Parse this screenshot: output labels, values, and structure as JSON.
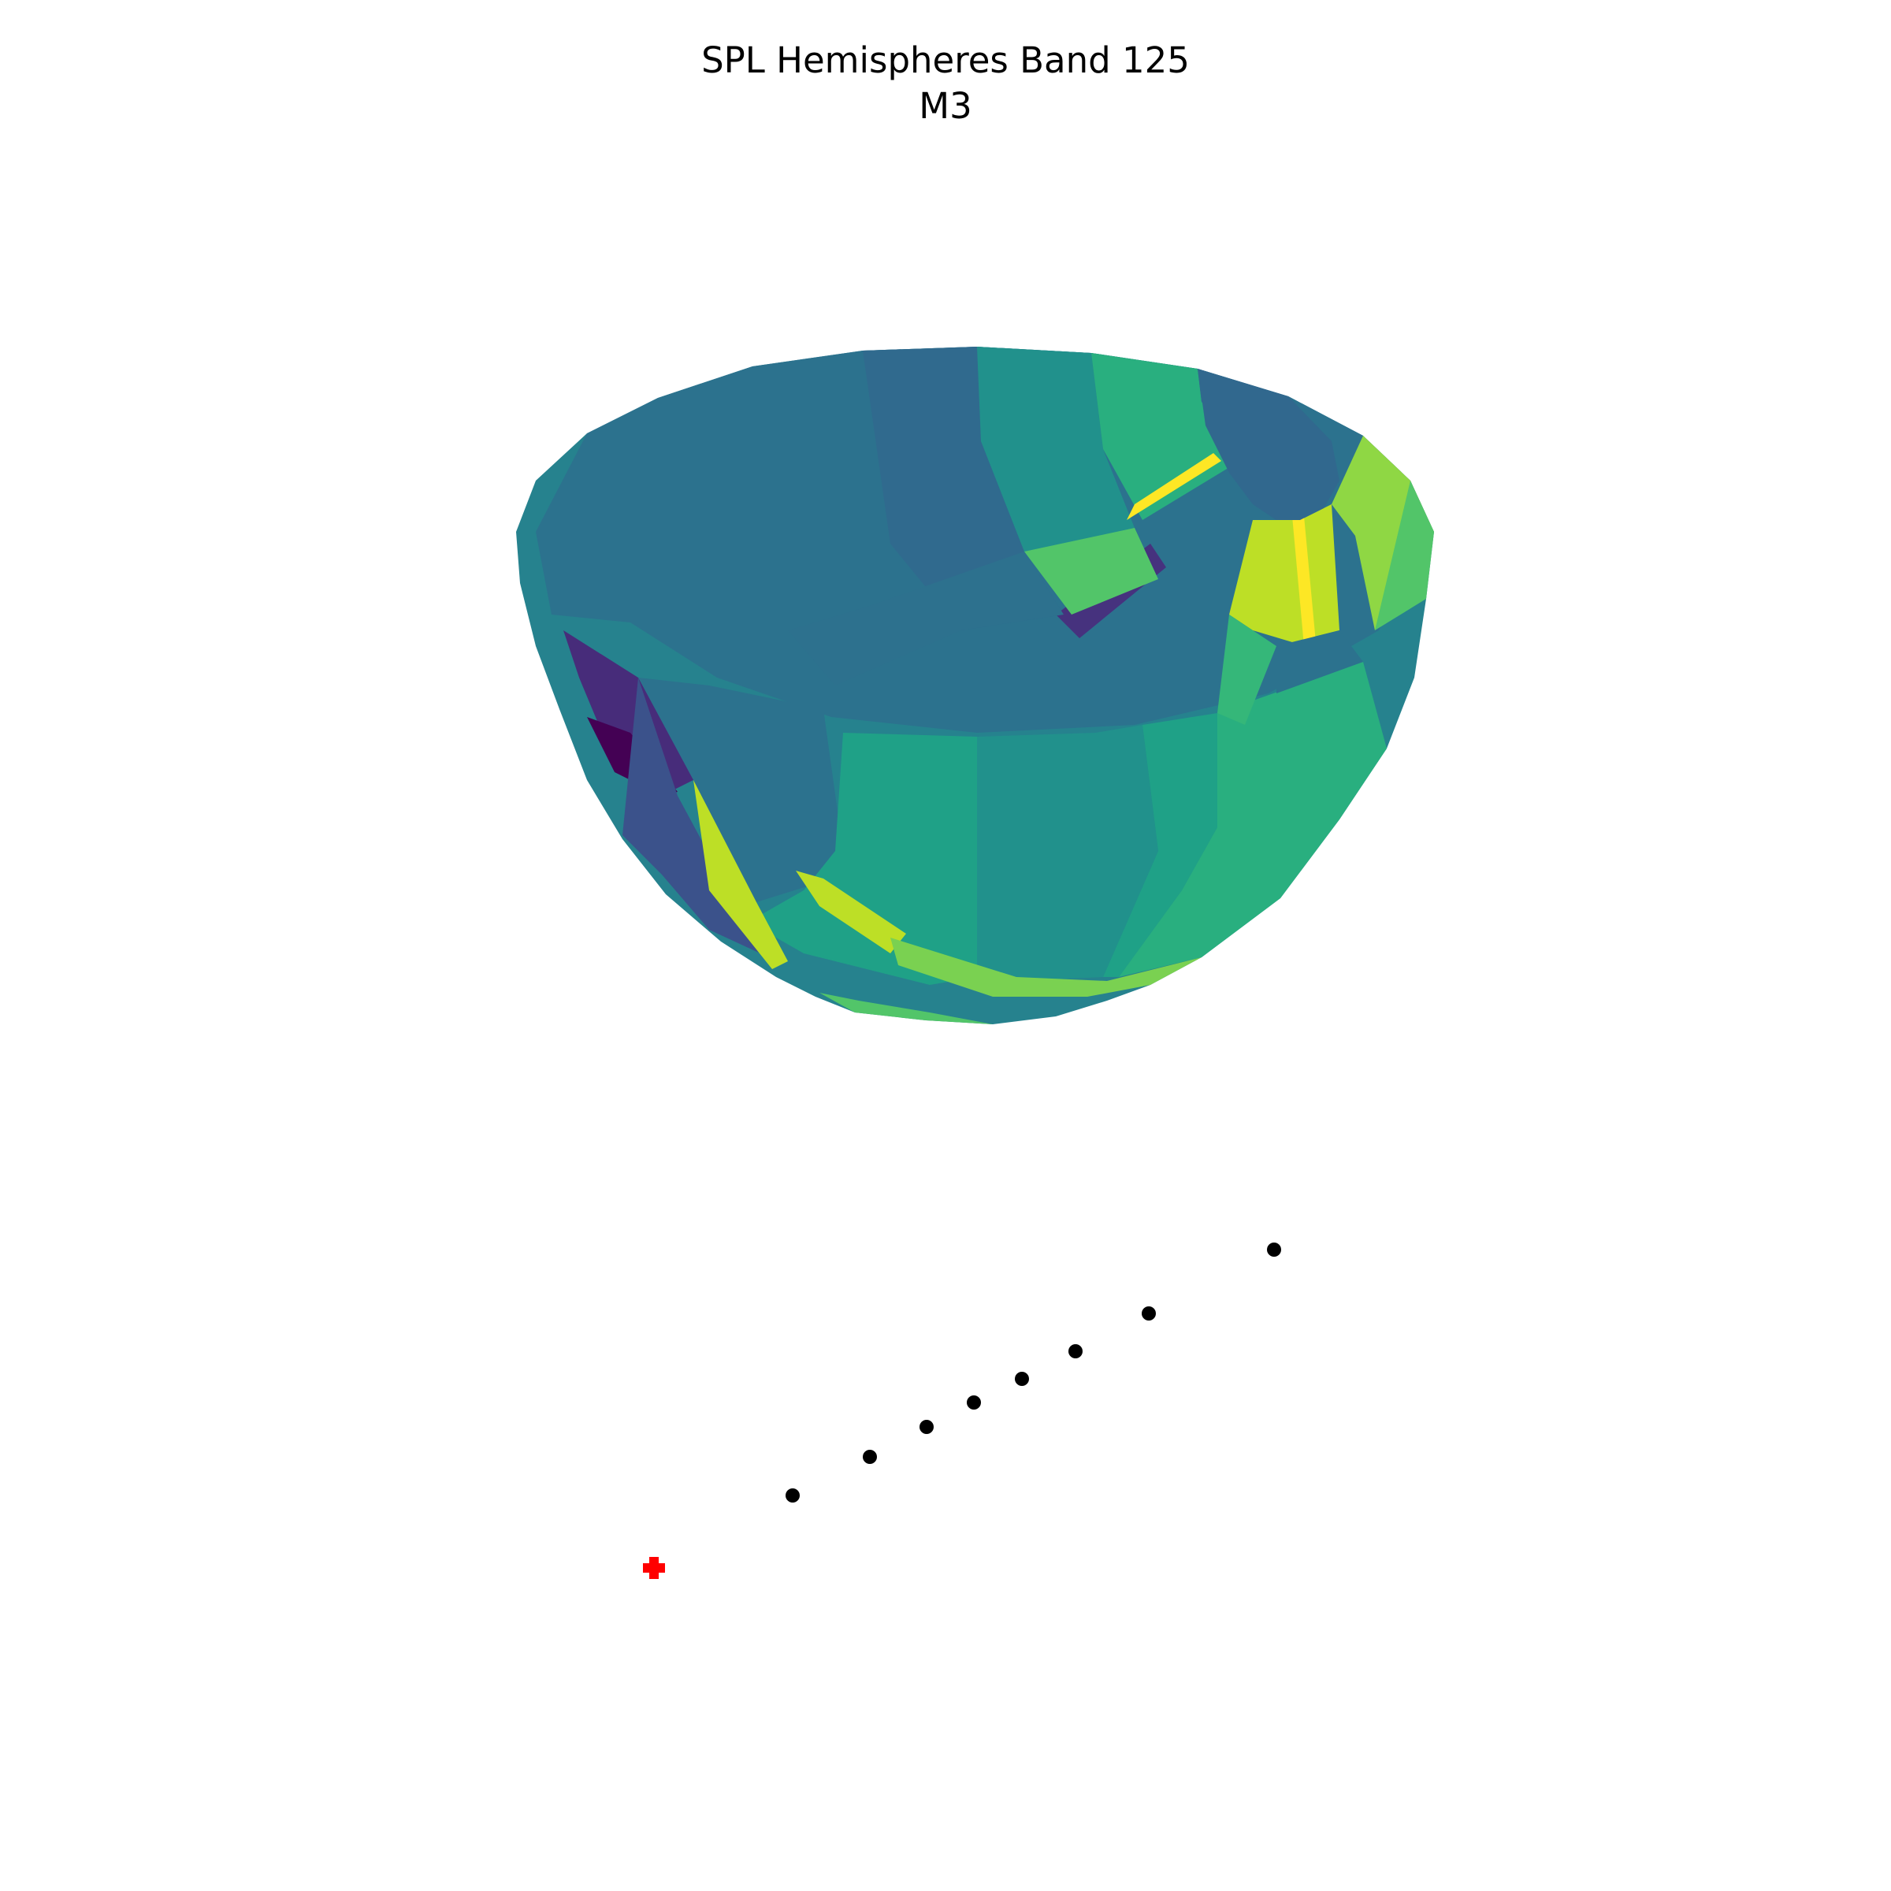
{
  "chart_data": {
    "type": "scatter",
    "title": "SPL Hemispheres Band 125",
    "subtitle": "M3",
    "axes_visible": false,
    "colormap": "viridis",
    "surface": {
      "shape": "hemisphere",
      "description_colors": {
        "low": "#440154",
        "mid": "#21918c",
        "high": "#fde725"
      }
    },
    "series": [
      {
        "marker": "circle",
        "color": "#000000",
        "points": [
          {
            "x": 1.0,
            "y": 1.0
          },
          {
            "x": 2.0,
            "y": 1.5
          },
          {
            "x": 2.7,
            "y": 1.85
          },
          {
            "x": 3.3,
            "y": 2.15
          },
          {
            "x": 3.9,
            "y": 2.45
          },
          {
            "x": 4.6,
            "y": 2.8
          },
          {
            "x": 5.5,
            "y": 3.25
          },
          {
            "x": 7.1,
            "y": 4.05
          }
        ]
      },
      {
        "marker": "plus",
        "color": "#ff0000",
        "points": [
          {
            "x": -0.8,
            "y": 0.1
          }
        ]
      }
    ]
  }
}
